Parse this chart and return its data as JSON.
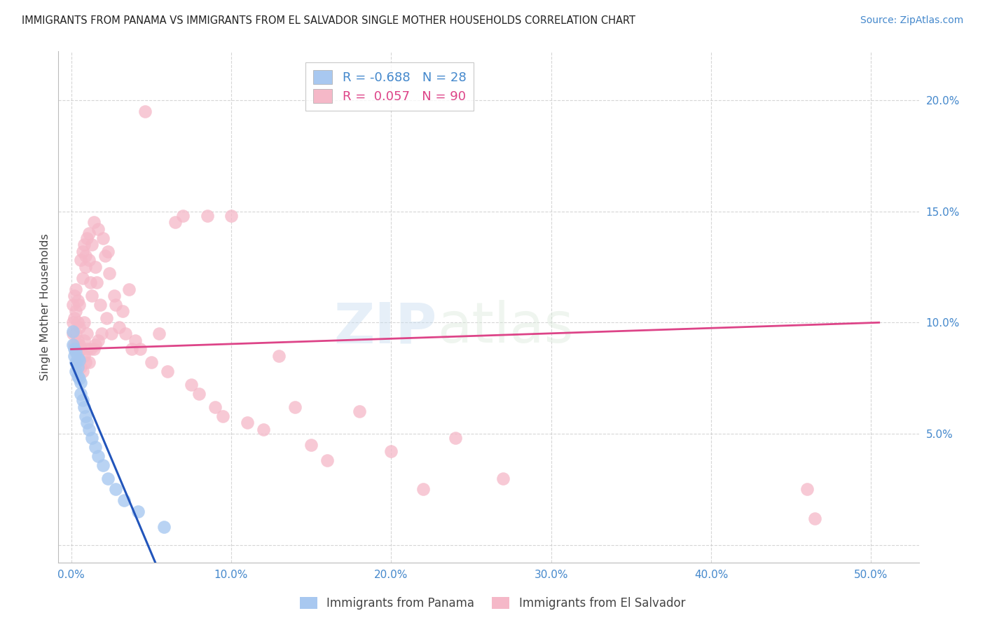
{
  "title": "IMMIGRANTS FROM PANAMA VS IMMIGRANTS FROM EL SALVADOR SINGLE MOTHER HOUSEHOLDS CORRELATION CHART",
  "source": "Source: ZipAtlas.com",
  "ylabel": "Single Mother Households",
  "x_ticks": [
    0.0,
    0.1,
    0.2,
    0.3,
    0.4,
    0.5
  ],
  "x_tick_labels": [
    "0.0%",
    "10.0%",
    "20.0%",
    "30.0%",
    "40.0%",
    "50.0%"
  ],
  "y_ticks": [
    0.0,
    0.05,
    0.1,
    0.15,
    0.2
  ],
  "y_tick_labels": [
    "",
    "5.0%",
    "10.0%",
    "15.0%",
    "20.0%"
  ],
  "xlim": [
    -0.008,
    0.53
  ],
  "ylim": [
    -0.008,
    0.222
  ],
  "panama_color": "#a8c8f0",
  "salvador_color": "#f5b8c8",
  "panama_line_color": "#2255bb",
  "salvador_line_color": "#dd4488",
  "panama_R": -0.688,
  "panama_N": 28,
  "salvador_R": 0.057,
  "salvador_N": 90,
  "legend_panama_label": "Immigrants from Panama",
  "legend_salvador_label": "Immigrants from El Salvador",
  "watermark_zip": "ZIP",
  "watermark_atlas": "atlas",
  "panama_scatter_x": [
    0.001,
    0.001,
    0.002,
    0.002,
    0.003,
    0.003,
    0.003,
    0.004,
    0.004,
    0.004,
    0.005,
    0.005,
    0.006,
    0.006,
    0.007,
    0.008,
    0.009,
    0.01,
    0.011,
    0.013,
    0.015,
    0.017,
    0.02,
    0.023,
    0.028,
    0.033,
    0.042,
    0.058
  ],
  "panama_scatter_y": [
    0.096,
    0.09,
    0.088,
    0.085,
    0.087,
    0.082,
    0.078,
    0.084,
    0.08,
    0.076,
    0.083,
    0.075,
    0.073,
    0.068,
    0.065,
    0.062,
    0.058,
    0.055,
    0.052,
    0.048,
    0.044,
    0.04,
    0.036,
    0.03,
    0.025,
    0.02,
    0.015,
    0.008
  ],
  "salvador_scatter_x": [
    0.001,
    0.001,
    0.001,
    0.002,
    0.002,
    0.002,
    0.003,
    0.003,
    0.003,
    0.003,
    0.004,
    0.004,
    0.004,
    0.004,
    0.005,
    0.005,
    0.005,
    0.005,
    0.006,
    0.006,
    0.006,
    0.007,
    0.007,
    0.007,
    0.008,
    0.008,
    0.008,
    0.008,
    0.009,
    0.009,
    0.009,
    0.01,
    0.01,
    0.01,
    0.011,
    0.011,
    0.011,
    0.012,
    0.012,
    0.013,
    0.013,
    0.014,
    0.014,
    0.015,
    0.015,
    0.016,
    0.017,
    0.017,
    0.018,
    0.019,
    0.02,
    0.021,
    0.022,
    0.023,
    0.024,
    0.025,
    0.027,
    0.028,
    0.03,
    0.032,
    0.034,
    0.036,
    0.038,
    0.04,
    0.043,
    0.046,
    0.05,
    0.055,
    0.06,
    0.065,
    0.07,
    0.075,
    0.08,
    0.085,
    0.09,
    0.095,
    0.1,
    0.11,
    0.12,
    0.13,
    0.14,
    0.15,
    0.16,
    0.18,
    0.2,
    0.22,
    0.24,
    0.27,
    0.46,
    0.465
  ],
  "salvador_scatter_y": [
    0.095,
    0.1,
    0.108,
    0.09,
    0.102,
    0.112,
    0.088,
    0.095,
    0.105,
    0.115,
    0.085,
    0.092,
    0.1,
    0.11,
    0.083,
    0.09,
    0.098,
    0.108,
    0.08,
    0.088,
    0.128,
    0.132,
    0.078,
    0.12,
    0.135,
    0.085,
    0.092,
    0.1,
    0.125,
    0.082,
    0.13,
    0.138,
    0.088,
    0.095,
    0.128,
    0.082,
    0.14,
    0.118,
    0.088,
    0.112,
    0.135,
    0.145,
    0.088,
    0.125,
    0.09,
    0.118,
    0.142,
    0.092,
    0.108,
    0.095,
    0.138,
    0.13,
    0.102,
    0.132,
    0.122,
    0.095,
    0.112,
    0.108,
    0.098,
    0.105,
    0.095,
    0.115,
    0.088,
    0.092,
    0.088,
    0.195,
    0.082,
    0.095,
    0.078,
    0.145,
    0.148,
    0.072,
    0.068,
    0.148,
    0.062,
    0.058,
    0.148,
    0.055,
    0.052,
    0.085,
    0.062,
    0.045,
    0.038,
    0.06,
    0.042,
    0.025,
    0.048,
    0.03,
    0.025,
    0.012
  ]
}
